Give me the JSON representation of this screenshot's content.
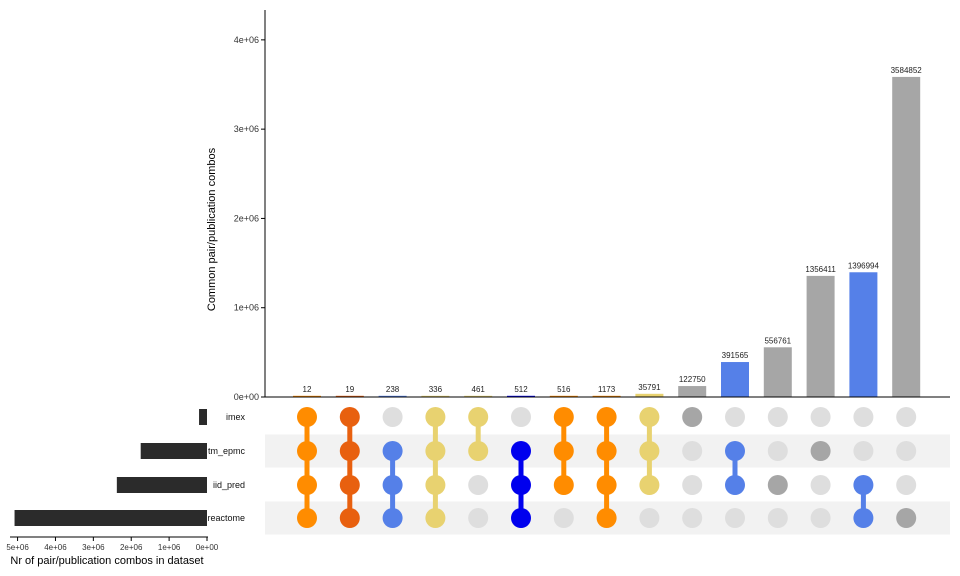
{
  "chart_data": {
    "type": "bar",
    "ylabel": "Common pair/publication combos",
    "ylim": [
      0,
      4200000
    ],
    "yticks": [
      0,
      1000000,
      2000000,
      3000000,
      4000000
    ],
    "ytick_labels": [
      "0e+00",
      "1e+06",
      "2e+06",
      "3e+06",
      "4e+06"
    ],
    "sets": [
      "imex",
      "tm_epmc",
      "iid_pred",
      "reactome"
    ],
    "set_sizes_xlabel": "Nr of pair/publication combos in dataset",
    "set_sizes": [
      210000,
      1750000,
      2380000,
      5080000
    ],
    "set_size_xlim": [
      5200000,
      0
    ],
    "set_size_ticks": [
      5000000,
      4000000,
      3000000,
      2000000,
      1000000,
      0
    ],
    "set_size_tick_labels": [
      "5e+06",
      "4e+06",
      "3e+06",
      "2e+06",
      "1e+06",
      "0e+00"
    ],
    "intersections": [
      {
        "value": 12,
        "label": "12",
        "color": "#FF8C00",
        "members": [
          "imex",
          "tm_epmc",
          "iid_pred",
          "reactome"
        ]
      },
      {
        "value": 19,
        "label": "19",
        "color": "#E8600F",
        "members": [
          "imex",
          "tm_epmc",
          "iid_pred",
          "reactome"
        ]
      },
      {
        "value": 238,
        "label": "238",
        "color": "#5580E8",
        "members": [
          "tm_epmc",
          "iid_pred",
          "reactome"
        ]
      },
      {
        "value": 336,
        "label": "336",
        "color": "#E8D270",
        "members": [
          "imex",
          "tm_epmc",
          "iid_pred",
          "reactome"
        ]
      },
      {
        "value": 461,
        "label": "461",
        "color": "#E8D270",
        "members": [
          "imex",
          "tm_epmc"
        ]
      },
      {
        "value": 512,
        "label": "512",
        "color": "#0000EE",
        "members": [
          "tm_epmc",
          "iid_pred",
          "reactome"
        ]
      },
      {
        "value": 516,
        "label": "516",
        "color": "#FF8C00",
        "members": [
          "imex",
          "tm_epmc",
          "iid_pred"
        ]
      },
      {
        "value": 1173,
        "label": "1173",
        "color": "#FF8C00",
        "members": [
          "imex",
          "tm_epmc",
          "iid_pred",
          "reactome"
        ]
      },
      {
        "value": 35791,
        "label": "35791",
        "color": "#E8D270",
        "members": [
          "imex",
          "tm_epmc",
          "iid_pred"
        ]
      },
      {
        "value": 122750,
        "label": "122750",
        "color": "#A6A6A6",
        "members": [
          "imex"
        ]
      },
      {
        "value": 391565,
        "label": "391565",
        "color": "#5580E8",
        "members": [
          "tm_epmc",
          "iid_pred"
        ]
      },
      {
        "value": 556761,
        "label": "556761",
        "color": "#A6A6A6",
        "members": [
          "iid_pred"
        ]
      },
      {
        "value": 1356411,
        "label": "1356411",
        "color": "#A6A6A6",
        "members": [
          "tm_epmc"
        ]
      },
      {
        "value": 1396994,
        "label": "1396994",
        "color": "#5580E8",
        "members": [
          "iid_pred",
          "reactome"
        ]
      },
      {
        "value": 3584852,
        "label": "3584852",
        "color": "#A6A6A6",
        "members": [
          "reactome"
        ]
      }
    ],
    "inactive_dot_color": "#DEDEDE",
    "stripe_color": "#F2F2F2",
    "set_bar_color": "#2B2B2B"
  }
}
